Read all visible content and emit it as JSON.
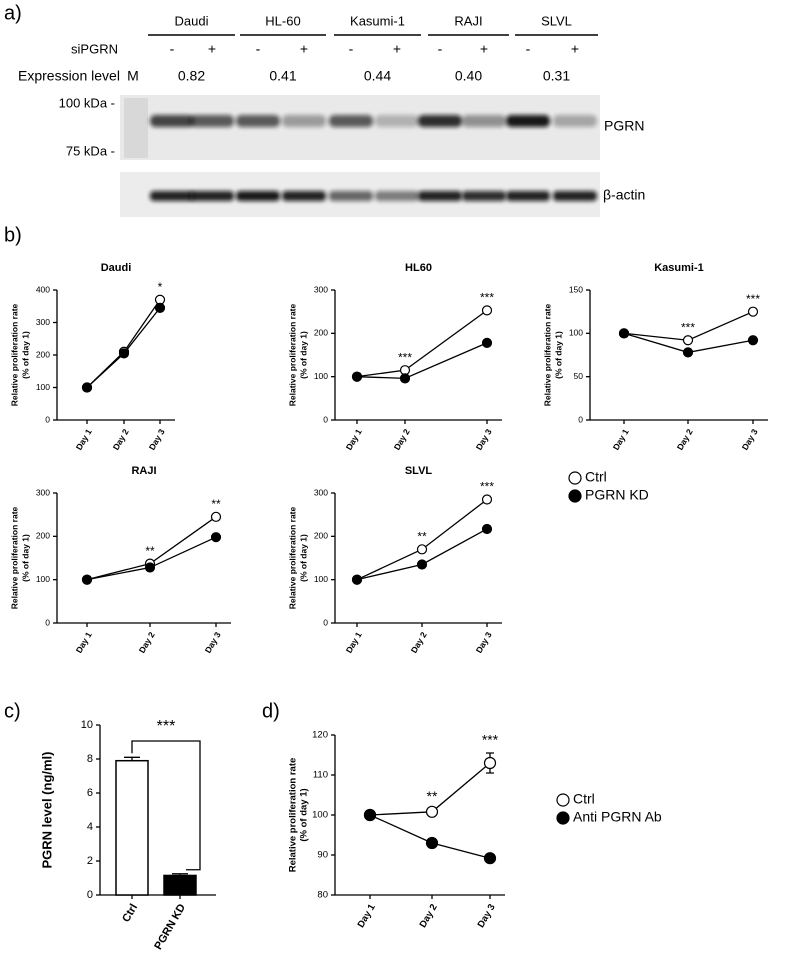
{
  "panels": [
    "a)",
    "b)",
    "c)",
    "d)"
  ],
  "blot": {
    "treatment_label": "siPGRN",
    "expression_label": "Expression level",
    "marker_label": "M",
    "cell_lines": [
      {
        "name": "Daudi",
        "signs": [
          "-",
          "+"
        ],
        "expression": "0.82"
      },
      {
        "name": "HL-60",
        "signs": [
          "-",
          "+"
        ],
        "expression": "0.41"
      },
      {
        "name": "Kasumi-1",
        "signs": [
          "-",
          "+"
        ],
        "expression": "0.44"
      },
      {
        "name": "RAJI",
        "signs": [
          "-",
          "+"
        ],
        "expression": "0.40"
      },
      {
        "name": "SLVL",
        "signs": [
          "-",
          "+"
        ],
        "expression": "0.31"
      }
    ],
    "size_markers": [
      "100 kDa -",
      "75 kDa -"
    ],
    "bands": [
      "PGRN",
      "β-actin"
    ]
  },
  "chart_data": [
    {
      "type": "line",
      "title": "Daudi",
      "ylabel": [
        "Relative proliferation rate",
        "(% of day 1)"
      ],
      "categories": [
        "Day 1",
        "Day 2",
        "Day 3"
      ],
      "ylim": [
        0,
        400
      ],
      "yticks": [
        0,
        100,
        200,
        300,
        400
      ],
      "series": [
        {
          "name": "Ctrl",
          "color": "#ffffff",
          "values": [
            100,
            210,
            370
          ]
        },
        {
          "name": "PGRN KD",
          "color": "#000000",
          "values": [
            100,
            205,
            345
          ]
        }
      ],
      "annotations": [
        null,
        null,
        "*"
      ]
    },
    {
      "type": "line",
      "title": "HL60",
      "ylabel": [
        "Relative proliferation rate",
        "(% of day 1)"
      ],
      "categories": [
        "Day 1",
        "Day 2",
        "Day 3"
      ],
      "ylim": [
        0,
        300
      ],
      "yticks": [
        0,
        100,
        200,
        300
      ],
      "series": [
        {
          "color": "#ffffff",
          "values": [
            100,
            115,
            253
          ]
        },
        {
          "color": "#000000",
          "values": [
            100,
            96,
            178
          ]
        }
      ],
      "annotations": [
        null,
        "***",
        "***"
      ]
    },
    {
      "type": "line",
      "title": "Kasumi-1",
      "ylabel": [
        "Relative proliferation rate",
        "(% of day 1)"
      ],
      "categories": [
        "Day 1",
        "Day 2",
        "Day 3"
      ],
      "ylim": [
        0,
        150
      ],
      "yticks": [
        0,
        50,
        100,
        150
      ],
      "series": [
        {
          "color": "#ffffff",
          "values": [
            100,
            92,
            125
          ]
        },
        {
          "color": "#000000",
          "values": [
            100,
            78,
            92
          ]
        }
      ],
      "annotations": [
        null,
        "***",
        "***"
      ]
    },
    {
      "type": "line",
      "title": "RAJI",
      "ylabel": [
        "Relative proliferation rate",
        "(% of day 1)"
      ],
      "categories": [
        "Day 1",
        "Day 2",
        "Day 3"
      ],
      "ylim": [
        0,
        300
      ],
      "yticks": [
        0,
        100,
        200,
        300
      ],
      "series": [
        {
          "color": "#ffffff",
          "values": [
            100,
            137,
            245
          ]
        },
        {
          "color": "#000000",
          "values": [
            100,
            128,
            198
          ]
        }
      ],
      "annotations": [
        null,
        "**",
        "**"
      ]
    },
    {
      "type": "line",
      "title": "SLVL",
      "ylabel": [
        "Relative proliferation rate",
        "(% of day 1)"
      ],
      "categories": [
        "Day 1",
        "Day 2",
        "Day 3"
      ],
      "ylim": [
        0,
        300
      ],
      "yticks": [
        0,
        100,
        200,
        300
      ],
      "series": [
        {
          "color": "#ffffff",
          "values": [
            100,
            170,
            285
          ]
        },
        {
          "color": "#000000",
          "values": [
            100,
            135,
            217
          ]
        }
      ],
      "annotations": [
        null,
        "**",
        "***"
      ]
    },
    {
      "type": "bar",
      "ylabel": "PGRN level (ng/ml)",
      "categories": [
        "Ctrl",
        "PGRN KD"
      ],
      "ylim": [
        0,
        10
      ],
      "yticks": [
        0,
        2,
        4,
        6,
        8,
        10
      ],
      "values": [
        7.9,
        1.15
      ],
      "errors": [
        0.2,
        0.1
      ],
      "colors": [
        "#ffffff",
        "#000000"
      ],
      "annotation": "***"
    },
    {
      "type": "line",
      "ylabel": [
        "Relative proliferation rate",
        "(% of day 1)"
      ],
      "categories": [
        "Day 1",
        "Day 2",
        "Day 3"
      ],
      "ylim": [
        80,
        120
      ],
      "yticks": [
        80,
        90,
        100,
        110,
        120
      ],
      "series": [
        {
          "name": "Ctrl",
          "color": "#ffffff",
          "values": [
            100,
            100.8,
            113
          ],
          "errors": [
            0.5,
            0.6,
            2.5
          ]
        },
        {
          "name": "Anti PGRN Ab",
          "color": "#000000",
          "values": [
            100,
            93,
            89.2
          ],
          "errors": [
            0.5,
            0.7,
            0.8
          ]
        }
      ],
      "annotations": [
        null,
        "**",
        "***"
      ]
    }
  ]
}
